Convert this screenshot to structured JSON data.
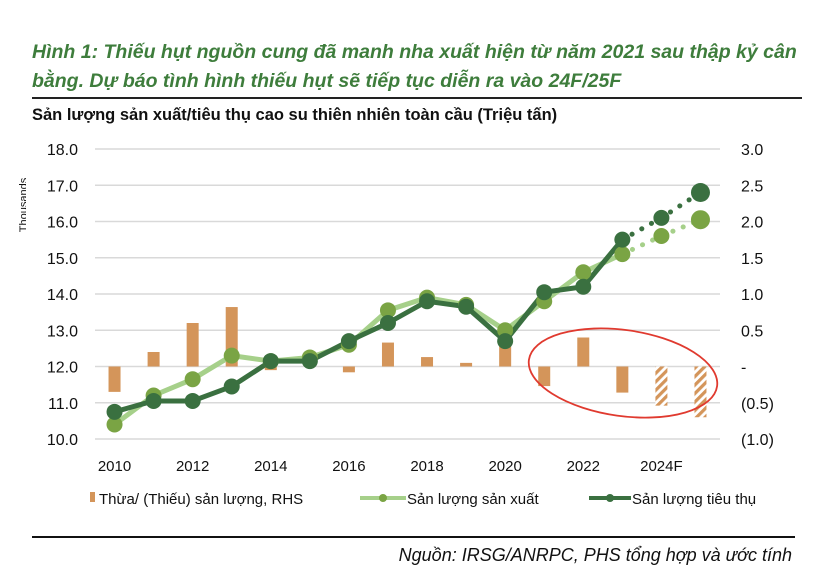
{
  "title": "Hình 1: Thiếu hụt nguồn cung đã manh nha xuất hiện từ năm 2021 sau thập kỷ cân bằng. Dự báo tình hình thiếu hụt sẽ tiếp tục diễn ra vào 24F/25F",
  "source": "Nguồn: IRSG/ANRPC, PHS tổng hợp và ước tính",
  "chart_data": {
    "type": "bar+line",
    "title": "Sản lượng sản xuất/tiêu thụ cao su thiên nhiên toàn cầu (Triệu tấn)",
    "ylabel": "Thousands",
    "x": [
      2010,
      2011,
      2012,
      2013,
      2014,
      2015,
      2016,
      2017,
      2018,
      2019,
      2020,
      2021,
      2022,
      2023,
      2024,
      2025
    ],
    "xtick_labels": [
      "2010",
      "2012",
      "2014",
      "2016",
      "2018",
      "2020",
      "2022",
      "2024F"
    ],
    "ylim": [
      10,
      18
    ],
    "yticks": [
      "18.0",
      "17.0",
      "16.0",
      "15.0",
      "14.0",
      "13.0",
      "12.0",
      "11.0",
      "10.0"
    ],
    "y2lim": [
      -1,
      3
    ],
    "y2ticks": [
      "3.0",
      "2.5",
      "2.0",
      "1.5",
      "1.0",
      "0.5",
      "-",
      "(0.5)",
      "(1.0)"
    ],
    "forecast_from": 2024,
    "series": [
      {
        "name": "Thừa/ (Thiếu) sản lượng, RHS",
        "type": "bar",
        "axis": "right",
        "color": "#d4955a",
        "values": [
          -0.35,
          0.2,
          0.6,
          0.82,
          -0.05,
          0.02,
          -0.08,
          0.33,
          0.13,
          0.05,
          0.36,
          -0.27,
          0.4,
          -0.36,
          -0.54,
          -0.7
        ]
      },
      {
        "name": "Sản lượng sản xuất",
        "type": "line",
        "axis": "left",
        "color": "#a6d08a",
        "marker_color": "#7aa444",
        "values": [
          10.4,
          11.2,
          11.65,
          12.3,
          12.15,
          12.25,
          12.6,
          13.55,
          13.9,
          13.7,
          13.0,
          13.8,
          14.6,
          15.1,
          15.6,
          16.05
        ]
      },
      {
        "name": "Sản lượng tiêu thụ",
        "type": "line",
        "axis": "left",
        "color": "#3a7040",
        "marker_color": "#3a7040",
        "values": [
          10.75,
          11.05,
          11.05,
          11.45,
          12.15,
          12.15,
          12.7,
          13.2,
          13.8,
          13.65,
          12.7,
          14.05,
          14.2,
          15.5,
          16.1,
          16.8
        ]
      }
    ],
    "annotation": "red ellipse highlighting 2021-2025 deficits",
    "grid": true,
    "legend": "bottom"
  }
}
